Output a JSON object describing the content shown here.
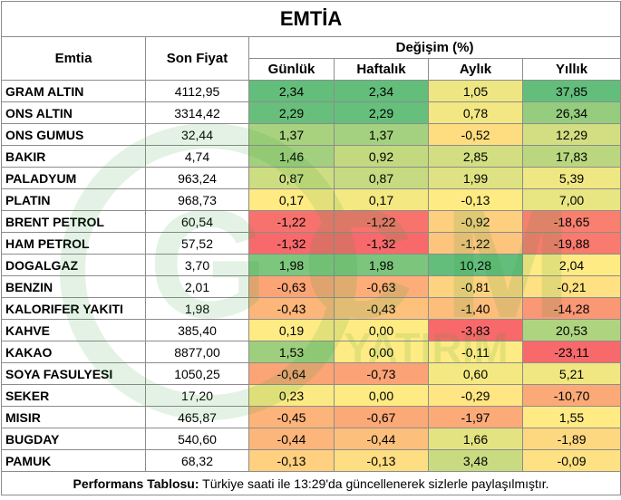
{
  "title": "EMTİA",
  "headers": {
    "commodity": "Emtia",
    "last_price": "Son Fiyat",
    "change_group": "Değişim (%)",
    "daily": "Günlük",
    "weekly": "Haftalık",
    "monthly": "Aylık",
    "yearly": "Yıllık"
  },
  "rows": [
    {
      "name": "GRAM ALTIN",
      "price": "4112,95",
      "daily": "2,34",
      "weekly": "2,34",
      "monthly": "1,05",
      "yearly": "37,85"
    },
    {
      "name": "ONS ALTIN",
      "price": "3314,42",
      "daily": "2,29",
      "weekly": "2,29",
      "monthly": "0,78",
      "yearly": "26,34"
    },
    {
      "name": "ONS GUMUS",
      "price": "32,44",
      "daily": "1,37",
      "weekly": "1,37",
      "monthly": "-0,52",
      "yearly": "12,29"
    },
    {
      "name": "BAKIR",
      "price": "4,74",
      "daily": "1,46",
      "weekly": "0,92",
      "monthly": "2,85",
      "yearly": "17,83"
    },
    {
      "name": "PALADYUM",
      "price": "963,24",
      "daily": "0,87",
      "weekly": "0,87",
      "monthly": "1,99",
      "yearly": "5,39"
    },
    {
      "name": "PLATIN",
      "price": "968,73",
      "daily": "0,17",
      "weekly": "0,17",
      "monthly": "-0,13",
      "yearly": "7,00"
    },
    {
      "name": "BRENT PETROL",
      "price": "60,54",
      "daily": "-1,22",
      "weekly": "-1,22",
      "monthly": "-0,92",
      "yearly": "-18,65"
    },
    {
      "name": "HAM PETROL",
      "price": "57,52",
      "daily": "-1,32",
      "weekly": "-1,32",
      "monthly": "-1,22",
      "yearly": "-19,88"
    },
    {
      "name": "DOGALGAZ",
      "price": "3,70",
      "daily": "1,98",
      "weekly": "1,98",
      "monthly": "10,28",
      "yearly": "2,04"
    },
    {
      "name": "BENZIN",
      "price": "2,01",
      "daily": "-0,63",
      "weekly": "-0,63",
      "monthly": "-0,81",
      "yearly": "-0,21"
    },
    {
      "name": "KALORIFER YAKITI",
      "price": "1,98",
      "daily": "-0,43",
      "weekly": "-0,43",
      "monthly": "-1,40",
      "yearly": "-14,28"
    },
    {
      "name": "KAHVE",
      "price": "385,40",
      "daily": "0,19",
      "weekly": "0,00",
      "monthly": "-3,83",
      "yearly": "20,53"
    },
    {
      "name": "KAKAO",
      "price": "8877,00",
      "daily": "1,53",
      "weekly": "0,00",
      "monthly": "-0,11",
      "yearly": "-23,11"
    },
    {
      "name": "SOYA FASULYESI",
      "price": "1050,25",
      "daily": "-0,64",
      "weekly": "-0,73",
      "monthly": "0,60",
      "yearly": "5,21"
    },
    {
      "name": "SEKER",
      "price": "17,20",
      "daily": "0,23",
      "weekly": "0,00",
      "monthly": "-0,29",
      "yearly": "-10,70"
    },
    {
      "name": "MISIR",
      "price": "465,87",
      "daily": "-0,45",
      "weekly": "-0,67",
      "monthly": "-1,97",
      "yearly": "1,55"
    },
    {
      "name": "BUGDAY",
      "price": "540,60",
      "daily": "-0,44",
      "weekly": "-0,44",
      "monthly": "1,66",
      "yearly": "-1,89"
    },
    {
      "name": "PAMUK",
      "price": "68,32",
      "daily": "-0,13",
      "weekly": "-0,13",
      "monthly": "3,48",
      "yearly": "-0,09"
    }
  ],
  "footer": {
    "label": "Performans Tablosu:",
    "text": " Türkiye saati ile 13:29'da güncellenerek sizlerle paylaşılmıştır."
  },
  "watermark": {
    "letters": [
      "G",
      "C",
      "M"
    ],
    "subtext": "YATIRIM",
    "color": "#2e9e3a"
  }
}
